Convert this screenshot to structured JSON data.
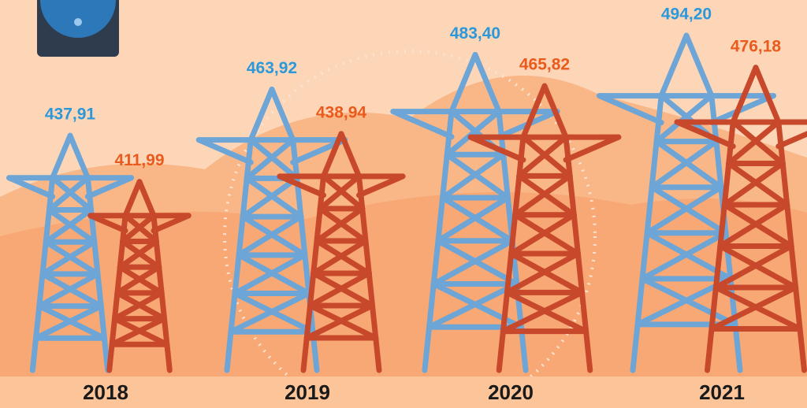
{
  "chart_data": {
    "type": "pictograph-bar",
    "categories": [
      "2018",
      "2019",
      "2020",
      "2021"
    ],
    "series": [
      {
        "color": "#6ca5d6",
        "label_color": "#2b98d9",
        "values": [
          437.91,
          463.92,
          483.4,
          494.2
        ],
        "value_labels": [
          "437,91",
          "463,92",
          "483,40",
          "494,20"
        ]
      },
      {
        "color": "#c8482b",
        "label_color": "#ea5a1d",
        "values": [
          411.99,
          438.94,
          465.82,
          476.18
        ],
        "value_labels": [
          "411,99",
          "438,94",
          "465,82",
          "476,18"
        ]
      }
    ],
    "ylim": [
      306,
      500
    ]
  }
}
